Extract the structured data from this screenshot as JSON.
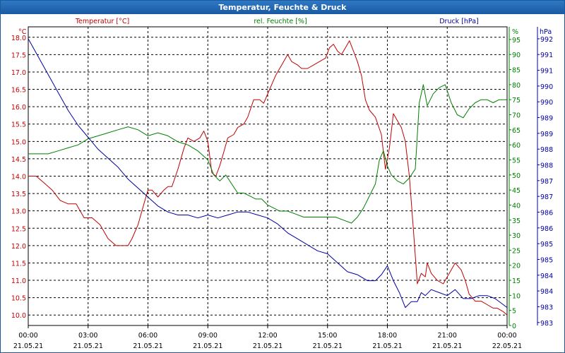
{
  "window": {
    "title": "Temperatur, Feuchte & Druck"
  },
  "chart_data": {
    "type": "line",
    "title": "Temperatur, Feuchte & Druck",
    "x_ticks": [
      {
        "time": "00:00",
        "date": "21.05.21",
        "hour": 0
      },
      {
        "time": "03:00",
        "date": "21.05.21",
        "hour": 3
      },
      {
        "time": "06:00",
        "date": "21.05.21",
        "hour": 6
      },
      {
        "time": "09:00",
        "date": "21.05.21",
        "hour": 9
      },
      {
        "time": "12:00",
        "date": "21.05.21",
        "hour": 12
      },
      {
        "time": "15:00",
        "date": "21.05.21",
        "hour": 15
      },
      {
        "time": "18:00",
        "date": "21.05.21",
        "hour": 18
      },
      {
        "time": "21:00",
        "date": "21.05.21",
        "hour": 21
      },
      {
        "time": "00:00",
        "date": "22.05.21",
        "hour": 24
      }
    ],
    "xlim": [
      0,
      24
    ],
    "axes": {
      "temperature": {
        "label": "Temperatur [°C]",
        "unit": "°C",
        "color": "#c00000",
        "ylim": [
          9.7,
          18.3
        ],
        "ticks": [
          "18.0",
          "17.5",
          "17.0",
          "16.5",
          "16.0",
          "15.5",
          "15.0",
          "14.5",
          "14.0",
          "13.5",
          "13.0",
          "12.5",
          "12.0",
          "11.5",
          "11.0",
          "10.5",
          "10.0"
        ]
      },
      "humidity": {
        "label": "rel. Feuchte [%]",
        "unit": "%",
        "color": "#008000",
        "ylim": [
          0,
          99.2
        ],
        "ticks": [
          "95",
          "90",
          "85",
          "80",
          "75",
          "70",
          "65",
          "60",
          "55",
          "50",
          "45",
          "40",
          "35",
          "30",
          "25",
          "20",
          "15",
          "10",
          "5",
          "0"
        ]
      },
      "pressure": {
        "label": "Druck [hPa]",
        "unit": "hPa",
        "color": "#0000a0",
        "ylim": [
          982.5,
          992.5
        ],
        "ticks": [
          "992",
          "991",
          "991",
          "990",
          "990",
          "989",
          "989",
          "988",
          "988",
          "987",
          "987",
          "986",
          "986",
          "985",
          "985",
          "984",
          "984",
          "983",
          "983"
        ]
      }
    },
    "series": [
      {
        "name": "Temperatur",
        "axis": "temperature",
        "color": "#c00000",
        "x": [
          0,
          0.4,
          0.8,
          1.2,
          1.6,
          2.0,
          2.4,
          2.8,
          3.2,
          3.6,
          4.0,
          4.4,
          4.8,
          5.0,
          5.2,
          5.5,
          5.8,
          6.0,
          6.2,
          6.5,
          6.8,
          7.0,
          7.2,
          7.5,
          7.8,
          8.0,
          8.3,
          8.6,
          8.8,
          9.0,
          9.2,
          9.4,
          9.6,
          9.8,
          10.0,
          10.3,
          10.5,
          10.8,
          11.0,
          11.3,
          11.6,
          11.8,
          12.1,
          12.4,
          12.7,
          13.0,
          13.2,
          13.5,
          13.7,
          14.0,
          14.3,
          14.6,
          14.9,
          15.1,
          15.3,
          15.5,
          15.7,
          15.9,
          16.1,
          16.3,
          16.5,
          16.7,
          16.9,
          17.1,
          17.4,
          17.7,
          17.9,
          18.1,
          18.3,
          18.5,
          18.7,
          18.9,
          19.1,
          19.3,
          19.5,
          19.7,
          19.9,
          20.0,
          20.2,
          20.5,
          20.8,
          21.1,
          21.4,
          21.7,
          21.9,
          22.1,
          22.4,
          22.7,
          23.0,
          23.3,
          23.5,
          23.8,
          24.0
        ],
        "values": [
          14.0,
          14.0,
          13.8,
          13.6,
          13.3,
          13.2,
          13.2,
          12.8,
          12.8,
          12.6,
          12.2,
          12.0,
          12.0,
          12.0,
          12.2,
          12.6,
          13.2,
          13.6,
          13.6,
          13.4,
          13.6,
          13.7,
          13.7,
          14.2,
          14.8,
          15.1,
          15.0,
          15.1,
          15.3,
          15.0,
          14.1,
          14.0,
          14.3,
          14.7,
          15.1,
          15.2,
          15.4,
          15.5,
          15.7,
          16.2,
          16.2,
          16.1,
          16.5,
          16.9,
          17.2,
          17.5,
          17.3,
          17.2,
          17.1,
          17.1,
          17.2,
          17.3,
          17.4,
          17.7,
          17.8,
          17.6,
          17.5,
          17.7,
          17.9,
          17.6,
          17.3,
          16.9,
          16.2,
          15.9,
          15.7,
          15.2,
          14.2,
          14.8,
          15.8,
          15.6,
          15.4,
          15.0,
          14.0,
          12.5,
          10.9,
          11.2,
          11.1,
          11.5,
          11.2,
          11.0,
          10.9,
          11.2,
          11.5,
          11.3,
          11.0,
          10.6,
          10.4,
          10.4,
          10.3,
          10.2,
          10.2,
          10.1,
          10.0
        ]
      },
      {
        "name": "rel. Feuchte",
        "axis": "humidity",
        "color": "#008000",
        "x": [
          0,
          0.5,
          1.0,
          1.5,
          2.0,
          2.5,
          3.0,
          3.5,
          4.0,
          4.5,
          5.0,
          5.5,
          6.0,
          6.5,
          7.0,
          7.5,
          8.0,
          8.5,
          9.0,
          9.3,
          9.6,
          9.9,
          10.2,
          10.5,
          10.8,
          11.1,
          11.4,
          11.7,
          12.0,
          12.3,
          12.6,
          13.0,
          13.4,
          13.8,
          14.2,
          14.6,
          15.0,
          15.4,
          15.8,
          16.2,
          16.5,
          16.8,
          17.1,
          17.4,
          17.6,
          17.8,
          18.0,
          18.2,
          18.5,
          18.8,
          19.1,
          19.4,
          19.6,
          19.8,
          20.0,
          20.3,
          20.6,
          20.9,
          21.2,
          21.5,
          21.8,
          22.1,
          22.4,
          22.7,
          23.0,
          23.3,
          23.6,
          24.0
        ],
        "values": [
          57,
          57,
          57,
          58,
          59,
          60,
          62,
          63,
          64,
          65,
          66,
          65,
          63,
          64,
          63,
          61,
          60,
          58,
          55,
          50,
          48,
          50,
          47,
          44,
          44,
          43,
          42,
          42,
          40,
          39,
          38,
          38,
          37,
          36,
          36,
          36,
          36,
          36,
          35,
          34,
          36,
          39,
          43,
          47,
          55,
          58,
          53,
          50,
          48,
          47,
          49,
          52,
          74,
          80,
          73,
          77,
          79,
          80,
          74,
          70,
          69,
          72,
          74,
          75,
          75,
          74,
          75,
          75
        ]
      },
      {
        "name": "Druck",
        "axis": "pressure",
        "color": "#0000a0",
        "x": [
          0,
          0.5,
          1.0,
          1.5,
          2.0,
          2.5,
          3.0,
          3.5,
          4.0,
          4.5,
          5.0,
          5.5,
          6.0,
          6.5,
          7.0,
          7.5,
          8.0,
          8.5,
          9.0,
          9.5,
          10.0,
          10.5,
          11.0,
          11.5,
          12.0,
          12.5,
          13.0,
          13.5,
          14.0,
          14.5,
          15.0,
          15.5,
          16.0,
          16.5,
          17.0,
          17.4,
          17.7,
          18.0,
          18.3,
          18.6,
          18.9,
          19.2,
          19.5,
          19.7,
          19.9,
          20.2,
          20.6,
          21.0,
          21.4,
          21.8,
          22.2,
          22.6,
          23.0,
          23.4,
          23.8,
          24.0
        ],
        "values": [
          992.1,
          991.5,
          990.9,
          990.3,
          989.7,
          989.2,
          988.8,
          988.4,
          988.1,
          987.8,
          987.4,
          987.1,
          986.8,
          986.5,
          986.3,
          986.2,
          986.2,
          986.1,
          986.2,
          986.1,
          986.2,
          986.3,
          986.3,
          986.2,
          986.1,
          985.9,
          985.6,
          985.4,
          985.2,
          985.0,
          984.9,
          984.6,
          984.3,
          984.2,
          984.0,
          984.0,
          984.2,
          984.5,
          984.0,
          983.6,
          983.1,
          983.3,
          983.3,
          983.6,
          983.5,
          983.7,
          983.6,
          983.5,
          983.7,
          983.4,
          983.4,
          983.5,
          983.5,
          983.4,
          983.2,
          983.1
        ]
      }
    ]
  }
}
